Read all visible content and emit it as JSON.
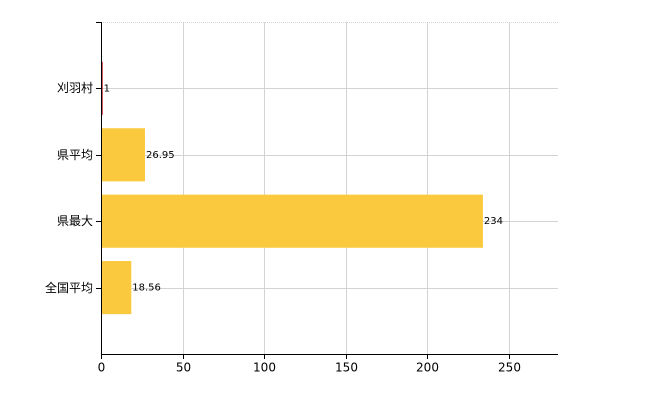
{
  "chart_data": {
    "type": "bar",
    "orientation": "horizontal",
    "categories": [
      "刈羽村",
      "県平均",
      "県最大",
      "全国平均"
    ],
    "values": [
      1,
      26.95,
      234,
      18.56
    ],
    "colors": [
      "#c00000",
      "#fbc93d",
      "#fbc93d",
      "#fbc93d"
    ],
    "xlim": [
      0,
      280
    ],
    "xticks": [
      0,
      50,
      100,
      150,
      200,
      250
    ],
    "grid": true
  }
}
